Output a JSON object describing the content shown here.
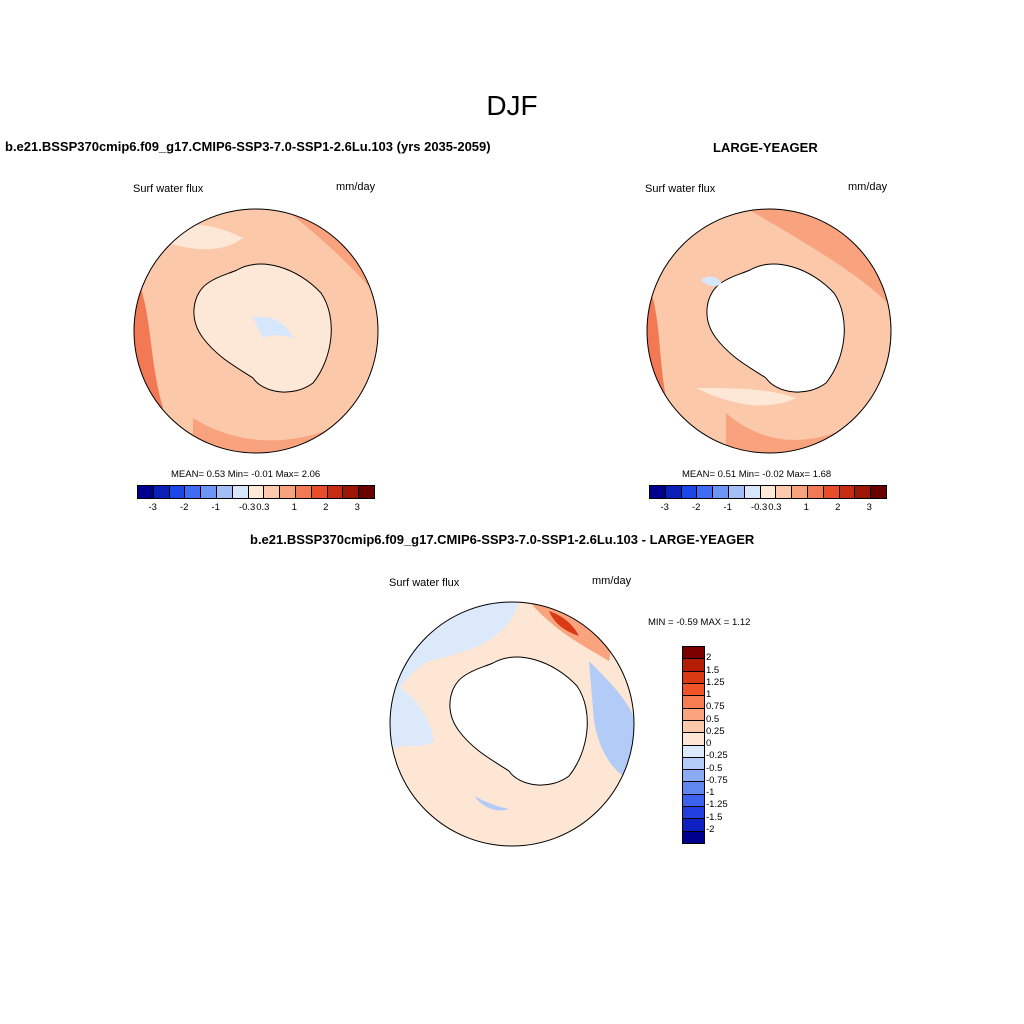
{
  "figure": {
    "title": "DJF",
    "top_left_title": "b.e21.BSSP370cmip6.f09_g17.CMIP6-SSP3-7.0-SSP1-2.6Lu.103 (yrs 2035-2059)",
    "top_right_title": "LARGE-YEAGER",
    "bottom_title": "b.e21.BSSP370cmip6.f09_g17.CMIP6-SSP3-7.0-SSP1-2.6Lu.103 - LARGE-YEAGER"
  },
  "panels": {
    "left": {
      "variable": "Surf water flux",
      "units": "mm/day",
      "stats_label_mean": "MEAN=",
      "mean": "0.53",
      "stats_label_min": "Min=",
      "min": "-0.01",
      "stats_label_max": "Max=",
      "max": "2.06"
    },
    "right": {
      "variable": "Surf water flux",
      "units": "mm/day",
      "stats_label_mean": "MEAN=",
      "mean": "0.51",
      "stats_label_min": "Min=",
      "min": "-0.02",
      "stats_label_max": "Max=",
      "max": "1.68"
    },
    "diff": {
      "variable": "Surf water flux",
      "units": "mm/day",
      "minmax_text": "MIN =  -0.59 MAX =   1.12"
    }
  },
  "colorbar_top": {
    "colors": [
      "#00008c",
      "#0a1fb8",
      "#1c46e6",
      "#3f6cf2",
      "#6e94f5",
      "#a3bef7",
      "#d6e6fb",
      "#fde7d6",
      "#fcc9aa",
      "#f8a27e",
      "#f37954",
      "#e84c2a",
      "#c72b12",
      "#9c1606",
      "#6b0000"
    ],
    "tick_labels": [
      "-3",
      "-2",
      "-1",
      "-0.3",
      "0.3",
      "1",
      "2",
      "3"
    ]
  },
  "colorbar_diff": {
    "colors_top_to_bottom": [
      "#7a0000",
      "#b51d05",
      "#d93a14",
      "#f05428",
      "#f67d52",
      "#f9a47e",
      "#fbc9a9",
      "#fde6d3",
      "#dbe9fb",
      "#b3ccf7",
      "#8bacf4",
      "#5f87ef",
      "#3a62ec",
      "#213ee0",
      "#0e20c0",
      "#00008e"
    ],
    "tick_labels": [
      "2",
      "1.5",
      "1.25",
      "1",
      "0.75",
      "0.5",
      "0.25",
      "0",
      "-0.25",
      "-0.5",
      "-0.75",
      "-1",
      "-1.25",
      "-1.5",
      "-2"
    ]
  }
}
